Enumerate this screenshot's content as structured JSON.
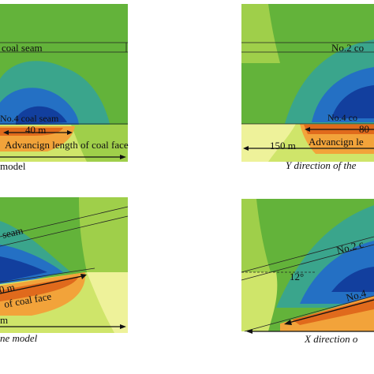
{
  "panels": {
    "top_left": {
      "seam_label": "coal seam",
      "seam4_label": "No.4 coal seam",
      "dim_label": "40 m",
      "advance_label": "Advancign length of coal face",
      "caption": "model"
    },
    "top_right": {
      "seam_label": "No.2 co",
      "seam4_label": "No.4 co",
      "dim_label": "80",
      "advance_label": "Advancign le",
      "width_label": "150 m",
      "caption": "Y direction of the"
    },
    "bottom_left": {
      "seam_label": "seam",
      "dim_label": "0 m",
      "advance_label": "of coal face",
      "width_label": "m",
      "caption": "ne model"
    },
    "bottom_right": {
      "seam_label": "No.2 c",
      "angle_label": "12°",
      "seam4_label": "No.4",
      "caption": "X direction o"
    }
  },
  "colors": {
    "background_green": "#63b33a",
    "light_green": "#9fcf4a",
    "yellow_green": "#cfe56a",
    "pale_yellow": "#eef29a",
    "teal": "#3aa58c",
    "blue": "#2470c4",
    "dark_blue": "#123f9e",
    "orange": "#f2a33a",
    "dark_orange": "#e06a1c"
  }
}
